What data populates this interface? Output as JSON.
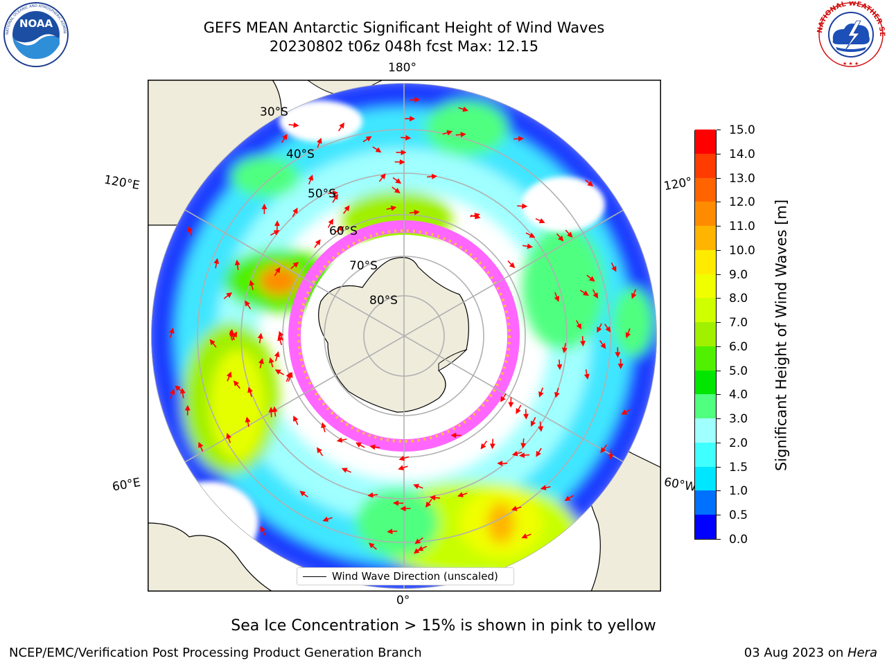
{
  "title": {
    "line1": "GEFS MEAN Antarctic Significant Height of Wind Waves",
    "line2": "20230802 t06z 048h fcst   Max: 12.15"
  },
  "logos": {
    "left": {
      "name": "noaa-logo",
      "text": "NOAA",
      "ring_text": "NATIONAL OCEANIC AND ATMOSPHERIC ADMINISTRATION · U.S. DEPARTMENT OF COMMERCE"
    },
    "right": {
      "name": "nws-logo",
      "ring_text": "NATIONAL WEATHER SERVICE"
    }
  },
  "map": {
    "projection": "south-polar-stereographic",
    "longitude_labels": {
      "top": "180°",
      "bottom": "0°",
      "left_upper": "120°E",
      "left_lower": "60°E",
      "right_upper": "120°",
      "right_lower": "60°W"
    },
    "latitude_labels": [
      "30°S",
      "40°S",
      "50°S",
      "60°S",
      "70°S",
      "80°S"
    ],
    "legend": {
      "label": "Wind Wave Direction (unscaled)"
    },
    "colors": {
      "land": "#efecdc",
      "sea_ice_low": "#ff66ff",
      "sea_ice_high": "#ffff00",
      "arrow": "#ff0000",
      "graticule": "#b0b0b0"
    }
  },
  "colorbar": {
    "label": "Significant Height of Wind Waves [m]",
    "ticks": [
      "0.0",
      "0.5",
      "1.0",
      "1.5",
      "2.0",
      "3.0",
      "4.0",
      "5.0",
      "6.0",
      "7.0",
      "8.0",
      "9.0",
      "10.0",
      "11.0",
      "12.0",
      "13.0",
      "14.0",
      "15.0"
    ],
    "colors": [
      "#0000ff",
      "#0070ff",
      "#00e6ff",
      "#40ffff",
      "#a0ffff",
      "#50ff80",
      "#00e600",
      "#50f000",
      "#a0f000",
      "#d0ff00",
      "#f0ff00",
      "#ffeb00",
      "#ffb400",
      "#ff8c00",
      "#ff6400",
      "#ff3c00",
      "#ff0000"
    ]
  },
  "notes": {
    "sea_ice": "Sea Ice Concentration > 15% is shown in pink to yellow"
  },
  "footer": {
    "left": "NCEP/EMC/Verification Post Processing Product Generation Branch",
    "date": "03 Aug 2023 on ",
    "machine": "Hera"
  }
}
